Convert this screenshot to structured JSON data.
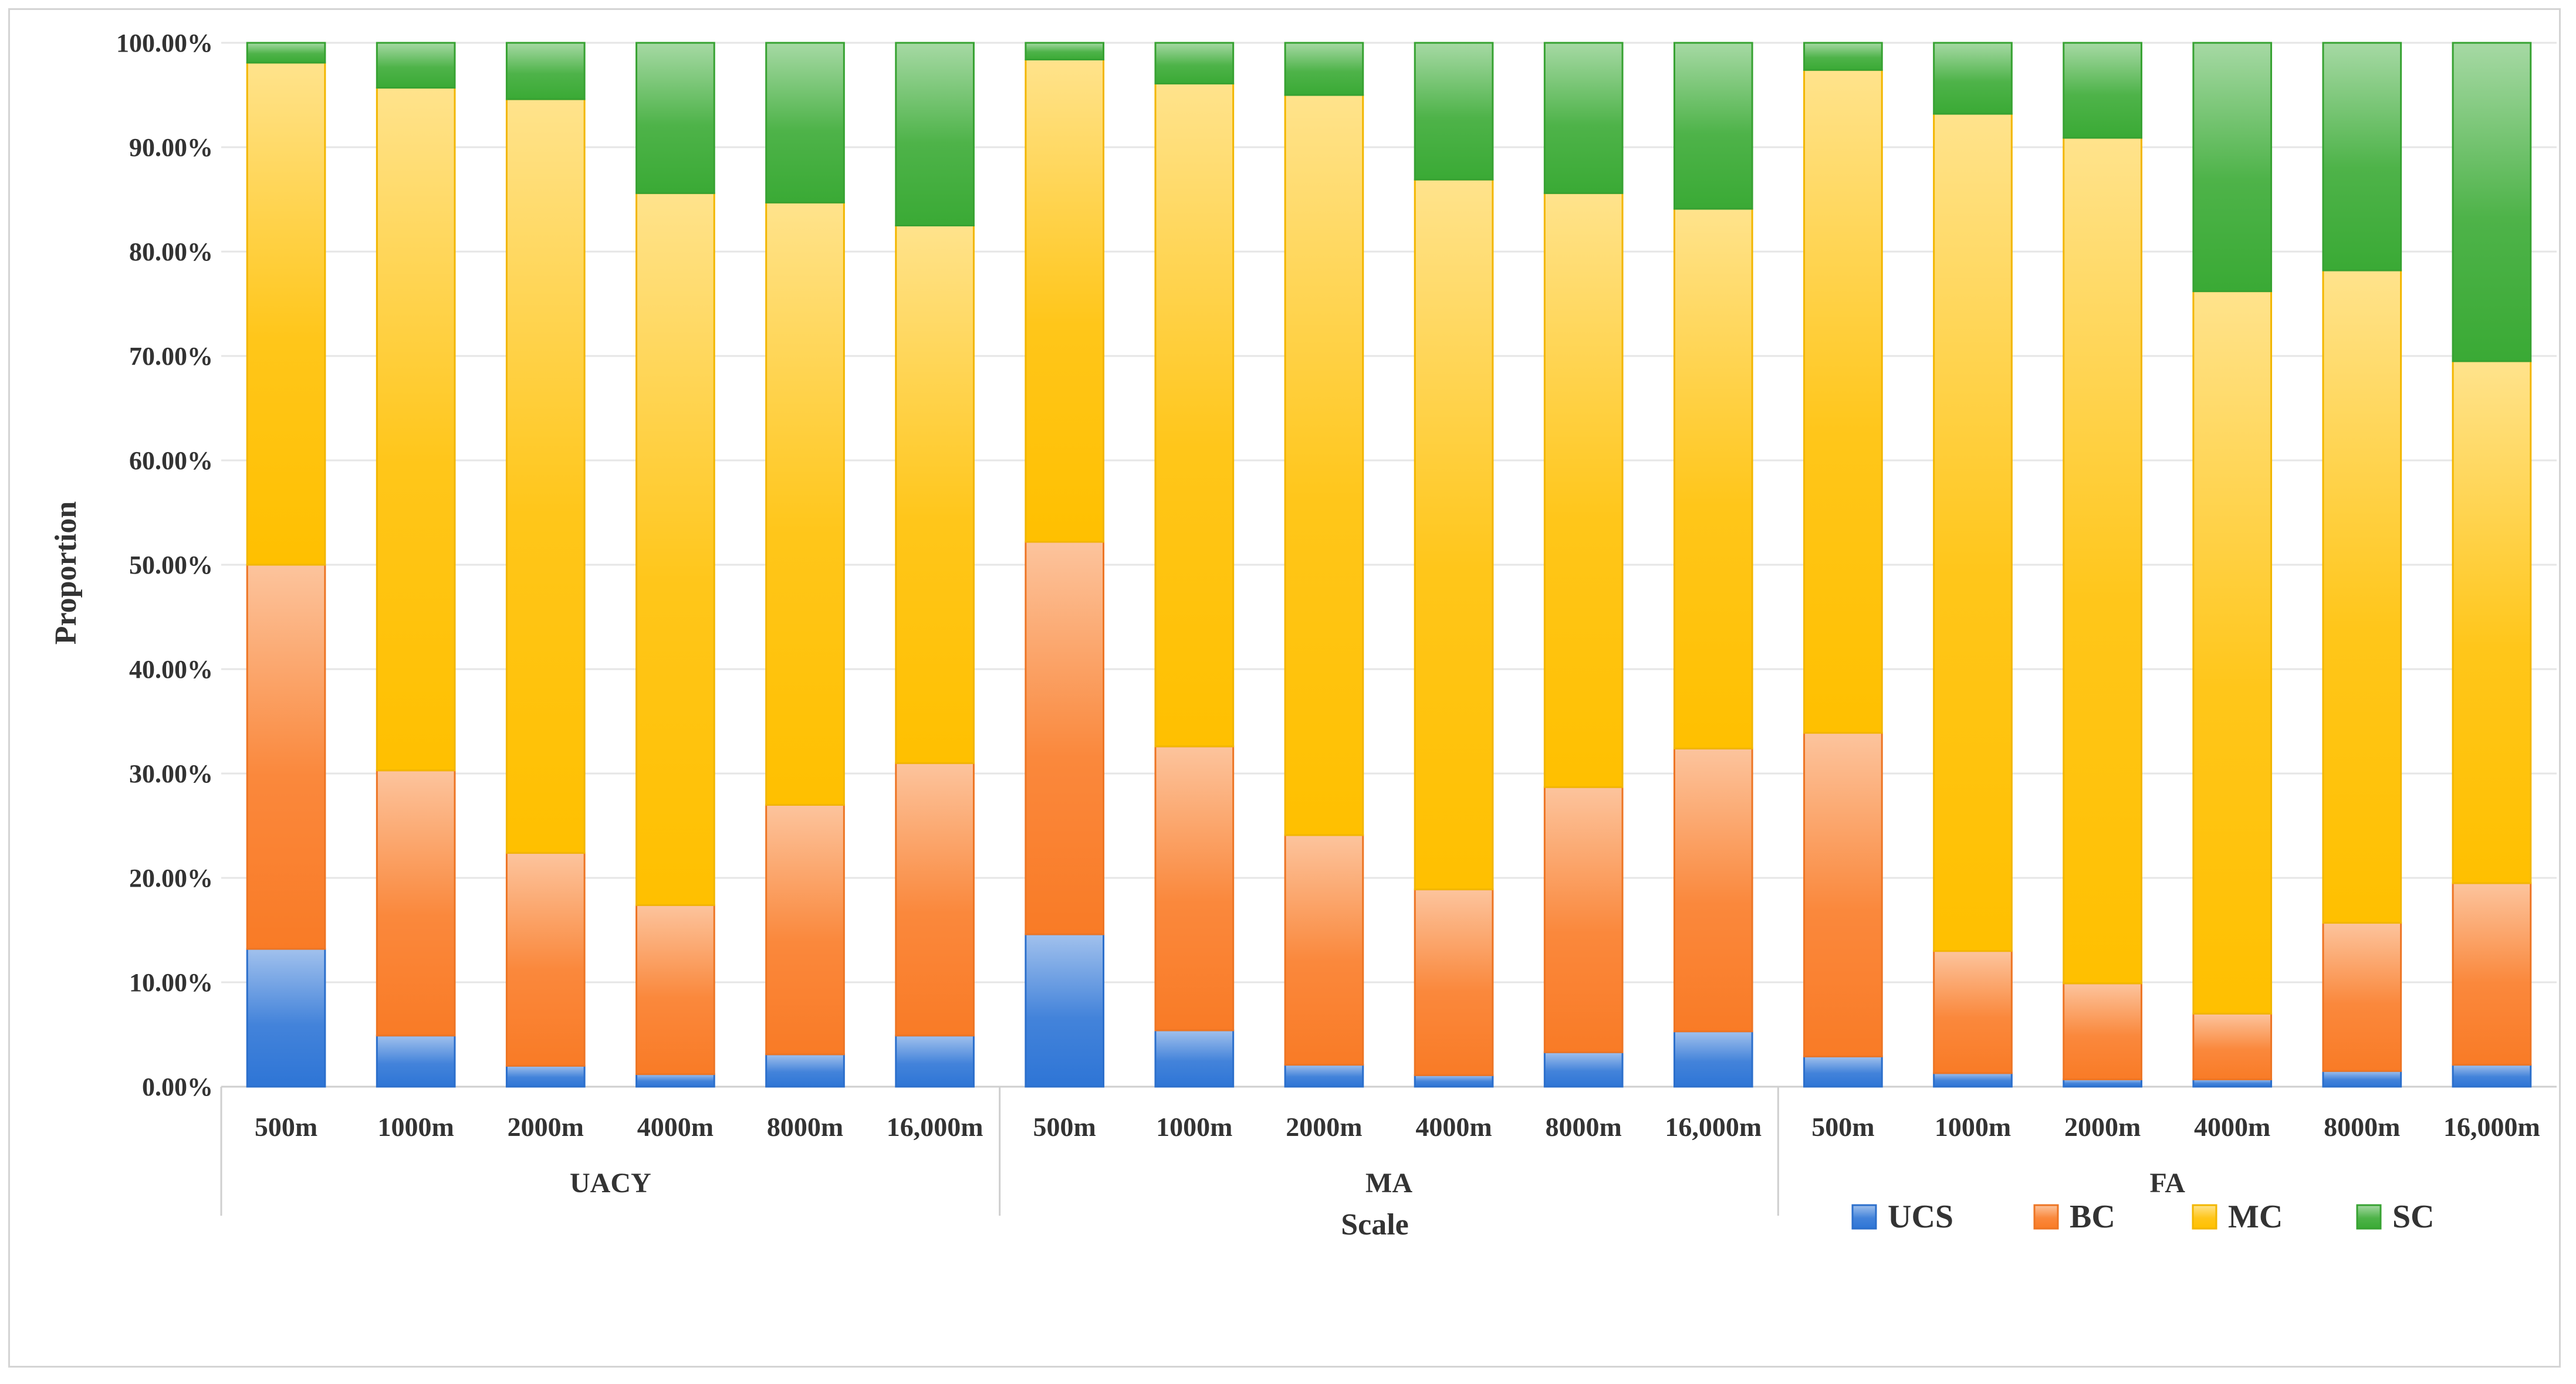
{
  "chart_data": {
    "type": "bar",
    "stacked": true,
    "normalized": true,
    "xlabel": "Scale",
    "ylabel": "Proportion",
    "ylim": [
      0,
      100
    ],
    "ytick_labels": [
      "0.00%",
      "10.00%",
      "20.00%",
      "30.00%",
      "40.00%",
      "50.00%",
      "60.00%",
      "70.00%",
      "80.00%",
      "90.00%",
      "100.00%"
    ],
    "groups": [
      {
        "name": "UACY",
        "categories": [
          "500m",
          "1000m",
          "2000m",
          "4000m",
          "8000m",
          "16,000m"
        ]
      },
      {
        "name": "MA",
        "categories": [
          "500m",
          "1000m",
          "2000m",
          "4000m",
          "8000m",
          "16,000m"
        ]
      },
      {
        "name": "FA",
        "categories": [
          "500m",
          "1000m",
          "2000m",
          "4000m",
          "8000m",
          "16,000m"
        ]
      }
    ],
    "series": [
      {
        "name": "UCS",
        "color": "#2e75d6",
        "values": [
          13.2,
          4.9,
          2.0,
          1.2,
          3.1,
          4.9,
          14.6,
          5.4,
          2.1,
          1.1,
          3.3,
          5.3,
          2.9,
          1.3,
          0.7,
          0.7,
          1.5,
          2.1
        ]
      },
      {
        "name": "BC",
        "color": "#f97b26",
        "values": [
          36.8,
          25.4,
          20.4,
          16.2,
          23.9,
          26.1,
          37.6,
          27.2,
          22.0,
          17.8,
          25.4,
          27.1,
          31.0,
          11.7,
          9.2,
          6.3,
          14.2,
          17.4
        ]
      },
      {
        "name": "MC",
        "color": "#ffc000",
        "values": [
          48.1,
          65.4,
          72.2,
          68.2,
          57.7,
          51.5,
          46.2,
          63.5,
          70.9,
          68.0,
          56.9,
          51.7,
          63.5,
          80.2,
          81.0,
          69.2,
          62.5,
          50.0
        ]
      },
      {
        "name": "SC",
        "color": "#3aaa35",
        "values": [
          1.9,
          4.3,
          5.4,
          14.4,
          15.3,
          17.5,
          1.6,
          3.9,
          5.0,
          13.1,
          14.4,
          15.9,
          2.6,
          6.8,
          9.1,
          23.8,
          21.8,
          30.5
        ]
      }
    ],
    "legend": "bottom-right"
  }
}
